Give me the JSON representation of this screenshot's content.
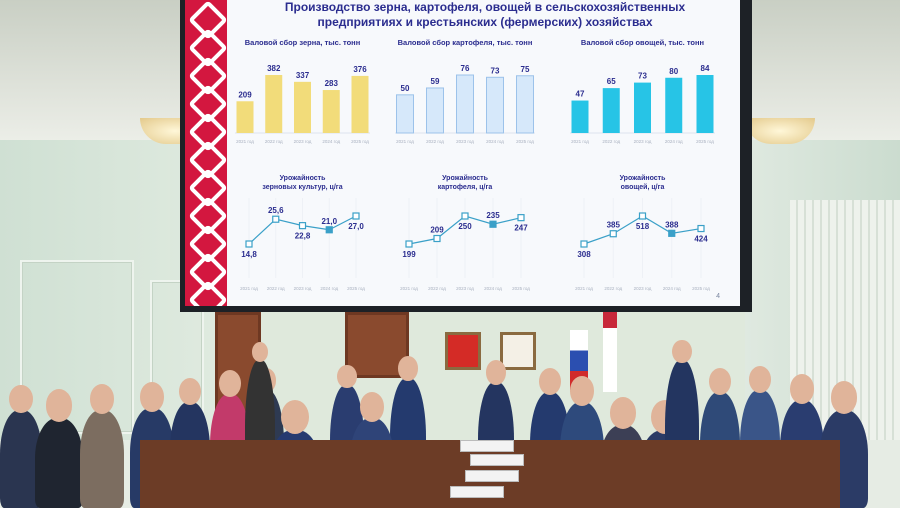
{
  "slide": {
    "title_line1": "Производство зерна, картофеля, овощей в сельскохозяйственных",
    "title_line2": "предприятиях и крестьянских (фермерских) хозяйствах",
    "page_number": "4"
  },
  "colors": {
    "ornament_red": "#d3173f",
    "title_blue": "#2b2d8f",
    "grain_bar": "#f2dc7a",
    "potato_bar": "#d6e8fa",
    "vegetable_bar": "#27c4e6",
    "line": "#3aa0c8"
  },
  "chart_data": [
    {
      "type": "bar",
      "title": "Валовой сбор зерна, тыс. тонн",
      "categories": [
        "2021 год",
        "2022 год",
        "2023 год",
        "2024 год",
        "2025 год"
      ],
      "values": [
        209,
        382,
        337,
        283,
        376
      ]
    },
    {
      "type": "bar",
      "title": "Валовой сбор картофеля, тыс. тонн",
      "categories": [
        "2021 год",
        "2022 год",
        "2023 год",
        "2024 год",
        "2025 год"
      ],
      "values": [
        50,
        59,
        76,
        73,
        75
      ]
    },
    {
      "type": "bar",
      "title": "Валовой сбор овощей, тыс. тонн",
      "categories": [
        "2021 год",
        "2022 год",
        "2023 год",
        "2024 год",
        "2025 год"
      ],
      "values": [
        47,
        65,
        73,
        80,
        84
      ]
    },
    {
      "type": "line",
      "title_line1": "Урожайность",
      "title_line2": "зерновых культур, ц/га",
      "categories": [
        "2021 год",
        "2022 год",
        "2023 год",
        "2024 год",
        "2025 год"
      ],
      "values": [
        14.8,
        25.6,
        22.8,
        21.0,
        27.0
      ],
      "labels": [
        "14,8",
        "25,6",
        "22,8",
        "21,0",
        "27,0"
      ]
    },
    {
      "type": "line",
      "title_line1": "Урожайность",
      "title_line2": "картофеля, ц/га",
      "categories": [
        "2021 год",
        "2022 год",
        "2023 год",
        "2024 год",
        "2025 год"
      ],
      "values": [
        199,
        209,
        250,
        235,
        247
      ],
      "labels": [
        "199",
        "209",
        "250",
        "235",
        "247"
      ]
    },
    {
      "type": "line",
      "title_line1": "Урожайность",
      "title_line2": "овощей, ц/га",
      "categories": [
        "2021 год",
        "2022 год",
        "2023 год",
        "2024 год",
        "2025 год"
      ],
      "values": [
        308,
        385,
        518,
        388,
        424
      ],
      "labels": [
        "308",
        "385",
        "518",
        "388",
        "424"
      ]
    }
  ]
}
